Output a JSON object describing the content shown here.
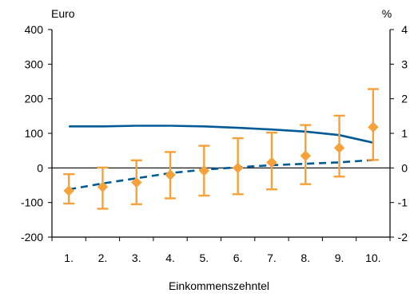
{
  "chart_data": {
    "type": "line",
    "xlabel": "Einkommenszehntel",
    "ylabel_left": "Euro",
    "ylabel_right": "%",
    "categories": [
      "1.",
      "2.",
      "3.",
      "4.",
      "5.",
      "6.",
      "7.",
      "8.",
      "9.",
      "10."
    ],
    "ylim_left": [
      -200,
      400
    ],
    "yticks_left": [
      "400",
      "300",
      "200",
      "100",
      "0",
      "-100",
      "-200"
    ],
    "ylim_right": [
      -2,
      4
    ],
    "yticks_right": [
      "4",
      "3",
      "2",
      "1",
      "0",
      "-1",
      "-2"
    ],
    "grid": false,
    "legend": "none",
    "series": [
      {
        "axis": "right",
        "style": "solid-line",
        "color": "#005a96",
        "values": [
          1.2,
          1.2,
          1.22,
          1.22,
          1.2,
          1.16,
          1.11,
          1.05,
          0.95,
          0.73
        ]
      },
      {
        "axis": "left",
        "style": "dashed-line",
        "color": "#005a96",
        "values": [
          -62,
          -45,
          -30,
          -15,
          -5,
          2,
          8,
          12,
          16,
          23
        ]
      },
      {
        "axis": "left",
        "style": "diamond-errorbar",
        "color": "#f7a13a",
        "values": [
          -66,
          -55,
          -42,
          -20,
          -8,
          0,
          16,
          35,
          58,
          118
        ],
        "lower": [
          -103,
          -118,
          -105,
          -88,
          -80,
          -76,
          -62,
          -47,
          -25,
          23
        ],
        "upper": [
          -18,
          1,
          22,
          46,
          64,
          86,
          102,
          124,
          151,
          228
        ]
      }
    ]
  }
}
